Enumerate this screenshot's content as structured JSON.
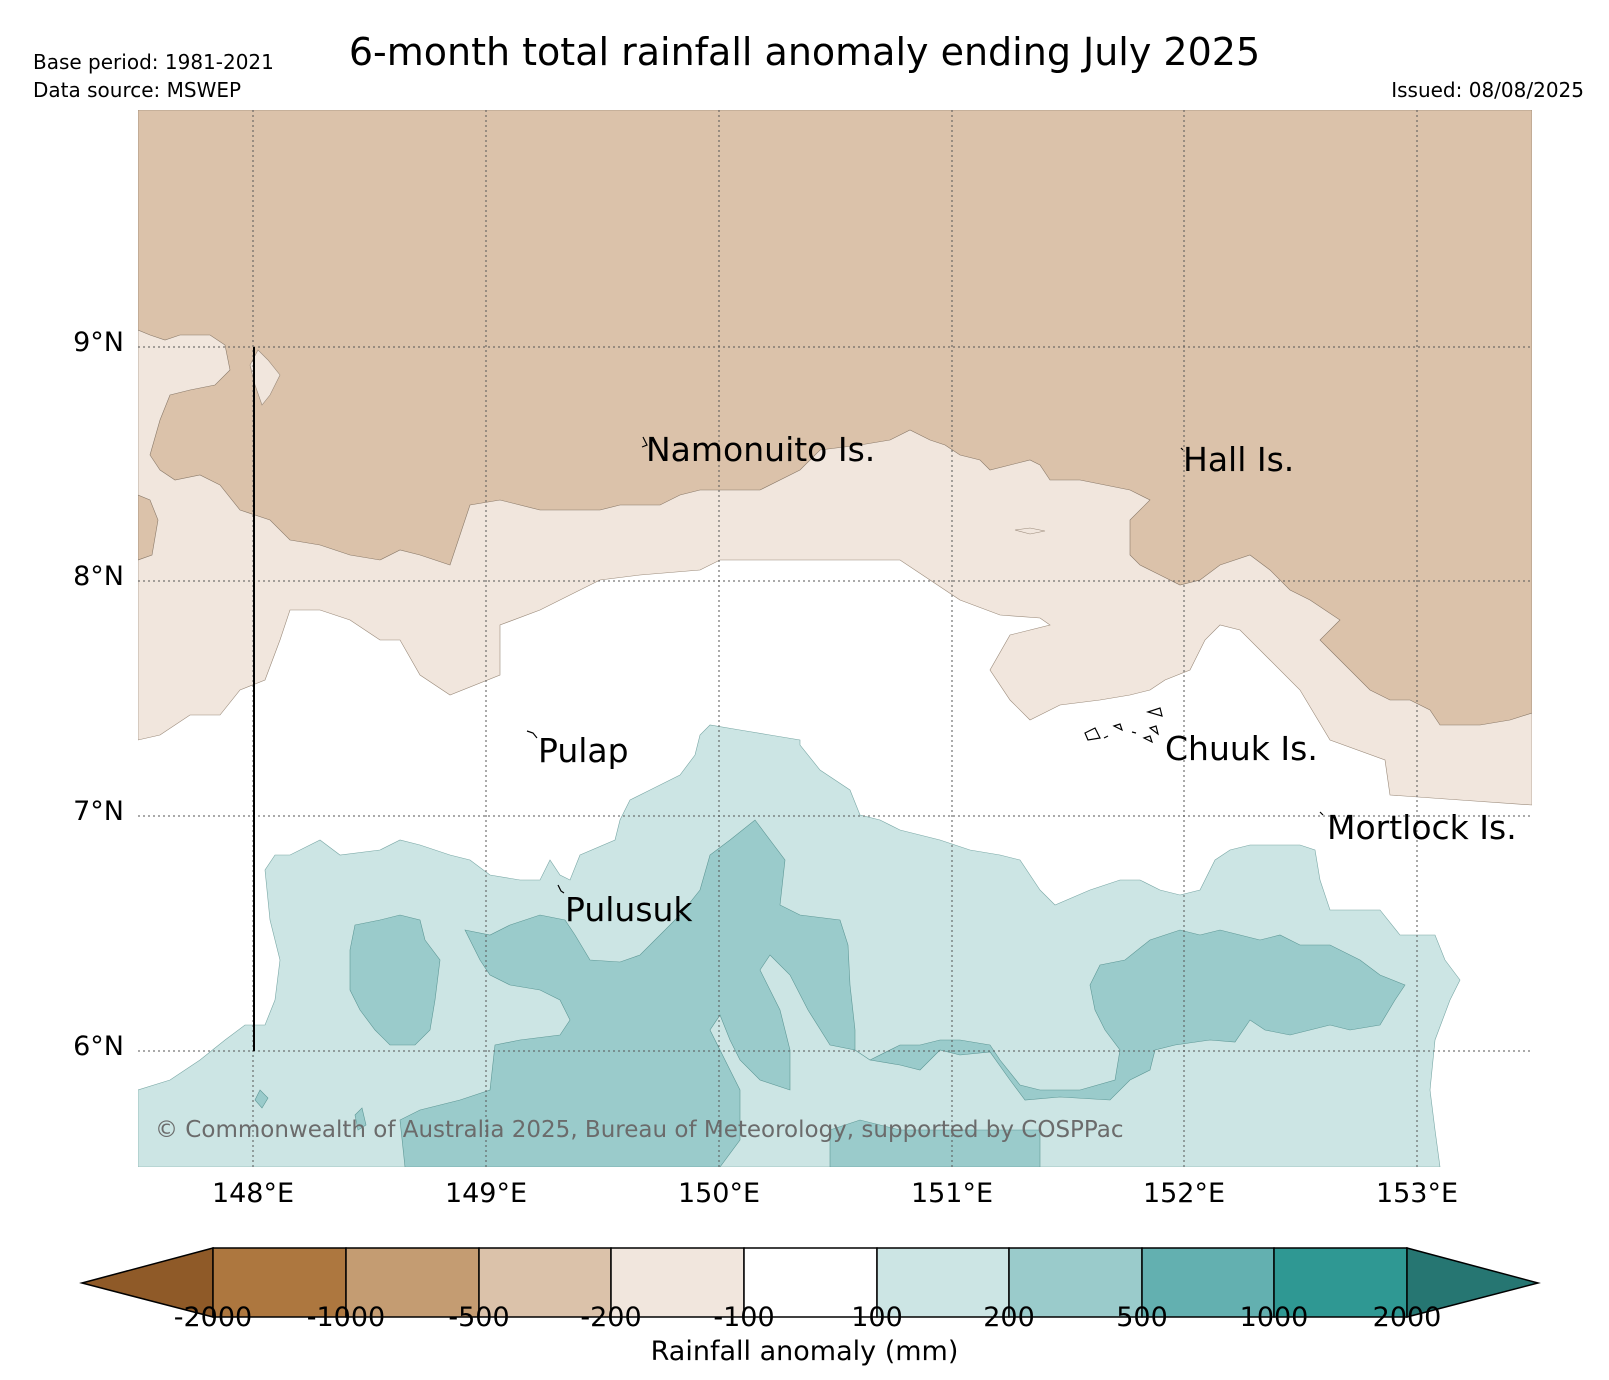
{
  "header": {
    "title": "6-month total rainfall anomaly ending July 2025",
    "base_period": "Base period: 1981-2021",
    "data_source": "Data source: MSWEP",
    "issued": "Issued: 08/08/2025"
  },
  "map": {
    "lat_labels": [
      "9°N",
      "8°N",
      "7°N",
      "6°N"
    ],
    "lon_labels": [
      "148°E",
      "149°E",
      "150°E",
      "151°E",
      "152°E",
      "153°E"
    ],
    "places": [
      "Namonuito Is.",
      "Hall Is.",
      "Pulap",
      "Chuuk Is.",
      "Mortlock Is.",
      "Pulusuk"
    ],
    "copyright": "© Commonwealth of Australia 2025, Bureau of Meteorology, supported by COSPPac"
  },
  "colorbar": {
    "title": "Rainfall anomaly (mm)",
    "ticks": [
      "-2000",
      "-1000",
      "-500",
      "-200",
      "-100",
      "100",
      "200",
      "500",
      "1000",
      "2000"
    ],
    "colors": [
      "#8f5a28",
      "#ad773f",
      "#c49c72",
      "#dbc2aa",
      "#f1e6dd",
      "#ffffff",
      "#cce5e4",
      "#9acbcb",
      "#63b0b0",
      "#2f9893",
      "#267672"
    ]
  }
}
